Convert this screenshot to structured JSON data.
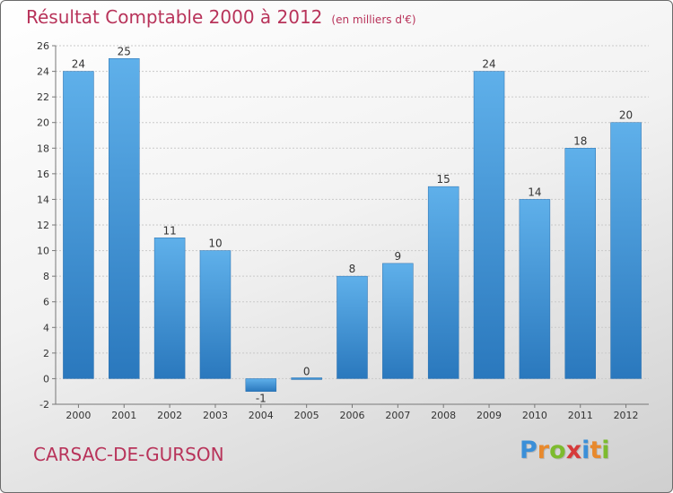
{
  "header": {
    "title": "Résultat Comptable 2000 à 2012",
    "unit": "(en milliers d'€)"
  },
  "footer": {
    "place": "CARSAC-DE-GURSON",
    "logo_letters": [
      "P",
      "r",
      "o",
      "x",
      "i",
      "t",
      "i"
    ],
    "logo_colors": [
      "#3a8fd8",
      "#e8892c",
      "#7dbb2e",
      "#d63a3a",
      "#3a8fd8",
      "#e8892c",
      "#7dbb2e"
    ]
  },
  "colors": {
    "title": "#b8335a",
    "bar": "#3d95d9",
    "bar_light": "#5fb0ea",
    "bar_dark": "#2a78bd"
  },
  "chart_data": {
    "type": "bar",
    "title": "Résultat Comptable 2000 à 2012",
    "categories": [
      "2000",
      "2001",
      "2002",
      "2003",
      "2004",
      "2005",
      "2006",
      "2007",
      "2008",
      "2009",
      "2010",
      "2011",
      "2012"
    ],
    "values": [
      24,
      25,
      11,
      10,
      -1,
      0,
      8,
      9,
      15,
      24,
      14,
      18,
      20
    ],
    "ylim": [
      -2,
      26
    ],
    "yticks": [
      -2,
      0,
      2,
      4,
      6,
      8,
      10,
      12,
      14,
      16,
      18,
      20,
      22,
      24,
      26
    ],
    "grid": true,
    "xlabel": "",
    "ylabel": ""
  }
}
